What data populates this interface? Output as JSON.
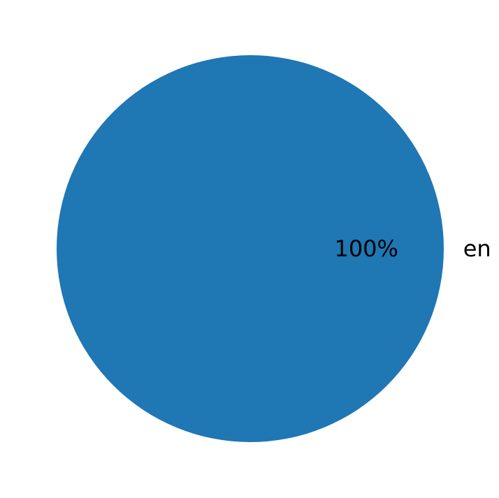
{
  "chart_data": {
    "type": "pie",
    "categories": [
      "en"
    ],
    "values": [
      100
    ],
    "data_labels": [
      "100%"
    ],
    "colors": [
      "#1f77b4"
    ],
    "title": ""
  }
}
